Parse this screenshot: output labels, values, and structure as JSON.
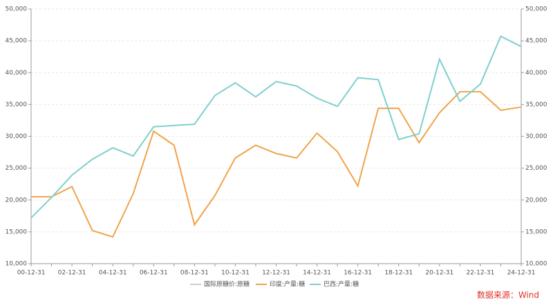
{
  "chart_data": {
    "type": "line",
    "categories": [
      "00-12-31",
      null,
      "02-12-31",
      null,
      "04-12-31",
      null,
      "06-12-31",
      null,
      "08-12-31",
      null,
      "10-12-31",
      null,
      "12-12-31",
      null,
      "14-12-31",
      null,
      "16-12-31",
      null,
      "18-12-31",
      null,
      "20-12-31",
      null,
      "22-12-31",
      null,
      "24-12-31"
    ],
    "series": [
      {
        "name": "国际原糖价:原糖",
        "color": "#cccccc",
        "values": [
          null,
          null,
          null,
          null,
          null,
          null,
          null,
          null,
          null,
          null,
          null,
          null,
          null,
          null,
          null,
          null,
          null,
          null,
          null,
          null,
          null,
          null,
          null,
          null,
          null
        ]
      },
      {
        "name": "印度:产量:糖",
        "color": "#f0a34a",
        "values": [
          20500,
          20500,
          22100,
          15200,
          14200,
          21000,
          30800,
          28600,
          16100,
          20700,
          26600,
          28600,
          27300,
          26600,
          30500,
          27600,
          22200,
          34400,
          34400,
          29000,
          33700,
          37000,
          37000,
          34100,
          34600
        ]
      },
      {
        "name": "巴西:产量:糖",
        "color": "#7ecfcc",
        "values": [
          17200,
          20400,
          23900,
          26400,
          28200,
          26900,
          31500,
          31700,
          31900,
          36400,
          38400,
          36200,
          38600,
          37900,
          36000,
          34700,
          39200,
          38900,
          29500,
          30400,
          42100,
          35500,
          38200,
          45700,
          44100
        ]
      }
    ],
    "ylim": [
      10000,
      50000
    ],
    "yticks": [
      {
        "value": 10000,
        "label": "10,000"
      },
      {
        "value": 15000,
        "label": "15,000"
      },
      {
        "value": 20000,
        "label": "20,000"
      },
      {
        "value": 25000,
        "label": "25,000"
      },
      {
        "value": 30000,
        "label": "30,000"
      },
      {
        "value": 35000,
        "label": "35,000"
      },
      {
        "value": 40000,
        "label": "40,000"
      },
      {
        "value": 45000,
        "label": "45,000"
      },
      {
        "value": 50000,
        "label": "50,000"
      }
    ],
    "y2lim": [
      10000,
      50000
    ],
    "y2ticks": [
      {
        "value": 10000,
        "label": "10,000"
      },
      {
        "value": 15000,
        "label": "15,000"
      },
      {
        "value": 20000,
        "label": "20,000"
      },
      {
        "value": 25000,
        "label": "25,000"
      },
      {
        "value": 30000,
        "label": "30,000"
      },
      {
        "value": 35000,
        "label": "35,000"
      },
      {
        "value": 40000,
        "label": "40,000"
      },
      {
        "value": 45000,
        "label": "45,000"
      },
      {
        "value": 50000,
        "label": "50,000"
      }
    ],
    "grid": true,
    "legend": "bottom",
    "source": "数据来源：Wind"
  }
}
